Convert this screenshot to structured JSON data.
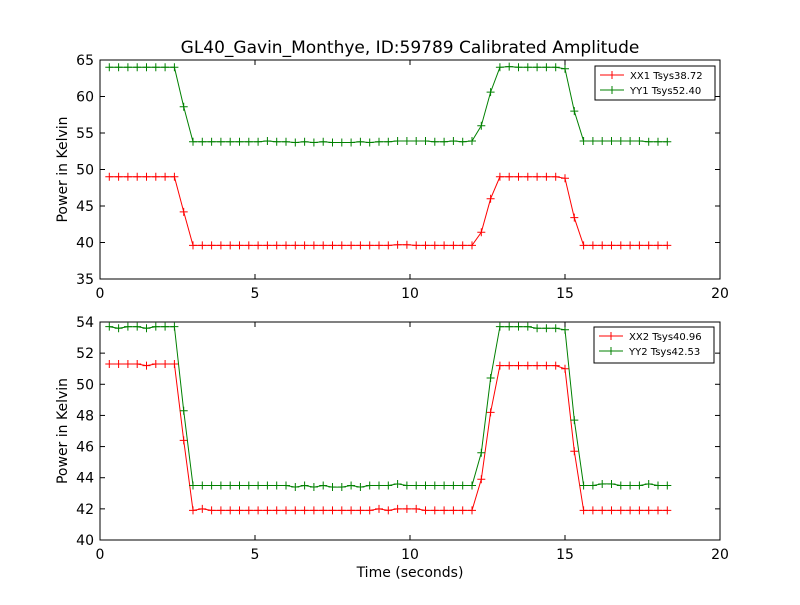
{
  "chart_data": [
    {
      "type": "line",
      "title": "GL40_Gavin_Monthye, ID:59789 Calibrated Amplitude",
      "xlabel": "",
      "ylabel": "Power in Kelvin",
      "xlim": [
        0,
        20
      ],
      "ylim": [
        35,
        65
      ],
      "xticks": [
        "0",
        "5",
        "10",
        "15",
        "20"
      ],
      "yticks": [
        "35",
        "40",
        "45",
        "50",
        "55",
        "60",
        "65"
      ],
      "legend_position": "top-right",
      "grid": false,
      "x": [
        0.3,
        0.6,
        0.9,
        1.2,
        1.5,
        1.8,
        2.1,
        2.4,
        2.7,
        3.0,
        3.3,
        3.6,
        3.9,
        4.2,
        4.5,
        4.8,
        5.1,
        5.4,
        5.7,
        6.0,
        6.3,
        6.6,
        6.9,
        7.2,
        7.5,
        7.8,
        8.1,
        8.4,
        8.7,
        9.0,
        9.3,
        9.6,
        9.9,
        10.2,
        10.5,
        10.8,
        11.1,
        11.4,
        11.7,
        12.0,
        12.3,
        12.6,
        12.9,
        13.2,
        13.5,
        13.8,
        14.1,
        14.4,
        14.7,
        15.0,
        15.3,
        15.6,
        15.9,
        16.2,
        16.5,
        16.8,
        17.1,
        17.4,
        17.7,
        18.0,
        18.3
      ],
      "series": [
        {
          "name": "XX1 Tsys38.72",
          "color": "#ff0000",
          "values": [
            49.0,
            49.0,
            49.0,
            49.0,
            49.0,
            49.0,
            49.0,
            49.0,
            44.2,
            39.6,
            39.6,
            39.6,
            39.6,
            39.6,
            39.6,
            39.6,
            39.6,
            39.6,
            39.6,
            39.6,
            39.6,
            39.6,
            39.6,
            39.6,
            39.6,
            39.6,
            39.6,
            39.6,
            39.6,
            39.6,
            39.6,
            39.7,
            39.7,
            39.6,
            39.6,
            39.6,
            39.6,
            39.6,
            39.6,
            39.6,
            41.4,
            46.0,
            49.0,
            49.0,
            49.0,
            49.0,
            49.0,
            49.0,
            49.0,
            48.8,
            43.4,
            39.6,
            39.6,
            39.6,
            39.6,
            39.6,
            39.6,
            39.6,
            39.6,
            39.6,
            39.6
          ]
        },
        {
          "name": "YY1 Tsys52.40",
          "color": "#008000",
          "values": [
            64.0,
            64.0,
            64.0,
            64.0,
            64.0,
            64.0,
            64.0,
            64.0,
            58.6,
            53.8,
            53.8,
            53.8,
            53.8,
            53.8,
            53.8,
            53.8,
            53.8,
            53.9,
            53.8,
            53.8,
            53.7,
            53.8,
            53.7,
            53.8,
            53.7,
            53.7,
            53.7,
            53.8,
            53.7,
            53.8,
            53.8,
            53.9,
            53.9,
            53.9,
            53.9,
            53.8,
            53.8,
            53.9,
            53.8,
            53.9,
            56.0,
            60.6,
            64.0,
            64.1,
            64.0,
            64.0,
            64.0,
            64.0,
            64.0,
            63.8,
            58.0,
            53.9,
            53.9,
            53.9,
            53.9,
            53.9,
            53.9,
            53.9,
            53.8,
            53.8,
            53.8
          ]
        }
      ]
    },
    {
      "type": "line",
      "title": "",
      "xlabel": "Time (seconds)",
      "ylabel": "Power in Kelvin",
      "xlim": [
        0,
        20
      ],
      "ylim": [
        40,
        54
      ],
      "xticks": [
        "0",
        "5",
        "10",
        "15",
        "20"
      ],
      "yticks": [
        "40",
        "42",
        "44",
        "46",
        "48",
        "50",
        "52",
        "54"
      ],
      "legend_position": "top-right",
      "grid": false,
      "x": [
        0.3,
        0.6,
        0.9,
        1.2,
        1.5,
        1.8,
        2.1,
        2.4,
        2.7,
        3.0,
        3.3,
        3.6,
        3.9,
        4.2,
        4.5,
        4.8,
        5.1,
        5.4,
        5.7,
        6.0,
        6.3,
        6.6,
        6.9,
        7.2,
        7.5,
        7.8,
        8.1,
        8.4,
        8.7,
        9.0,
        9.3,
        9.6,
        9.9,
        10.2,
        10.5,
        10.8,
        11.1,
        11.4,
        11.7,
        12.0,
        12.3,
        12.6,
        12.9,
        13.2,
        13.5,
        13.8,
        14.1,
        14.4,
        14.7,
        15.0,
        15.3,
        15.6,
        15.9,
        16.2,
        16.5,
        16.8,
        17.1,
        17.4,
        17.7,
        18.0,
        18.3
      ],
      "series": [
        {
          "name": "XX2 Tsys40.96",
          "color": "#ff0000",
          "values": [
            51.3,
            51.3,
            51.3,
            51.3,
            51.2,
            51.3,
            51.3,
            51.3,
            46.4,
            41.9,
            42.0,
            41.9,
            41.9,
            41.9,
            41.9,
            41.9,
            41.9,
            41.9,
            41.9,
            41.9,
            41.9,
            41.9,
            41.9,
            41.9,
            41.9,
            41.9,
            41.9,
            41.9,
            41.9,
            42.0,
            41.9,
            42.0,
            42.0,
            42.0,
            41.9,
            41.9,
            41.9,
            41.9,
            41.9,
            41.9,
            43.9,
            48.2,
            51.2,
            51.2,
            51.2,
            51.2,
            51.2,
            51.2,
            51.2,
            51.0,
            45.7,
            41.9,
            41.9,
            41.9,
            41.9,
            41.9,
            41.9,
            41.9,
            41.9,
            41.9,
            41.9
          ]
        },
        {
          "name": "YY2 Tsys42.53",
          "color": "#008000",
          "values": [
            53.7,
            53.6,
            53.7,
            53.7,
            53.6,
            53.7,
            53.7,
            53.7,
            48.3,
            43.5,
            43.5,
            43.5,
            43.5,
            43.5,
            43.5,
            43.5,
            43.5,
            43.5,
            43.5,
            43.5,
            43.4,
            43.5,
            43.4,
            43.5,
            43.4,
            43.4,
            43.5,
            43.4,
            43.5,
            43.5,
            43.5,
            43.6,
            43.5,
            43.5,
            43.5,
            43.5,
            43.5,
            43.5,
            43.5,
            43.5,
            45.6,
            50.4,
            53.7,
            53.7,
            53.7,
            53.7,
            53.6,
            53.6,
            53.6,
            53.5,
            47.7,
            43.5,
            43.5,
            43.6,
            43.6,
            43.5,
            43.5,
            43.5,
            43.6,
            43.5,
            43.5
          ]
        }
      ]
    }
  ]
}
